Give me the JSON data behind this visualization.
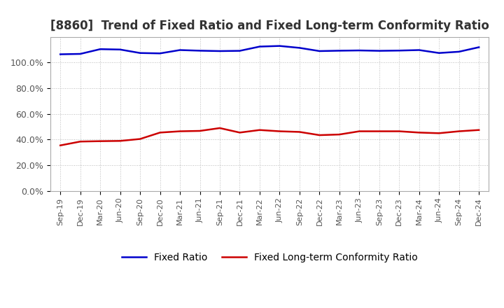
{
  "title": "[8860]  Trend of Fixed Ratio and Fixed Long-term Conformity Ratio",
  "x_labels": [
    "Sep-19",
    "Dec-19",
    "Mar-20",
    "Jun-20",
    "Sep-20",
    "Dec-20",
    "Mar-21",
    "Jun-21",
    "Sep-21",
    "Dec-21",
    "Mar-22",
    "Jun-22",
    "Sep-22",
    "Dec-22",
    "Mar-23",
    "Jun-23",
    "Sep-23",
    "Dec-23",
    "Mar-24",
    "Jun-24",
    "Sep-24",
    "Dec-24"
  ],
  "fixed_ratio": [
    106.5,
    106.8,
    110.5,
    110.2,
    107.5,
    107.2,
    109.8,
    109.3,
    109.0,
    109.2,
    112.5,
    113.0,
    111.5,
    109.0,
    109.3,
    109.5,
    109.2,
    109.4,
    109.8,
    107.5,
    108.5,
    112.0
  ],
  "fixed_lt_ratio": [
    35.5,
    38.5,
    38.8,
    39.0,
    40.5,
    45.5,
    46.5,
    46.8,
    49.0,
    45.5,
    47.5,
    46.5,
    46.0,
    43.5,
    44.0,
    46.5,
    46.5,
    46.5,
    45.5,
    45.0,
    46.5,
    47.5
  ],
  "fixed_ratio_color": "#0000cc",
  "fixed_lt_ratio_color": "#cc0000",
  "background_color": "#ffffff",
  "grid_color": "#aaaaaa",
  "ylim": [
    0,
    120
  ],
  "yticks": [
    0,
    20,
    40,
    60,
    80,
    100
  ],
  "ytick_labels": [
    "0.0%",
    "20.0%",
    "40.0%",
    "60.0%",
    "80.0%",
    "100.0%"
  ],
  "legend_fixed_ratio": "Fixed Ratio",
  "legend_fixed_lt_ratio": "Fixed Long-term Conformity Ratio",
  "title_fontsize": 12,
  "axis_fontsize": 9,
  "legend_fontsize": 10
}
